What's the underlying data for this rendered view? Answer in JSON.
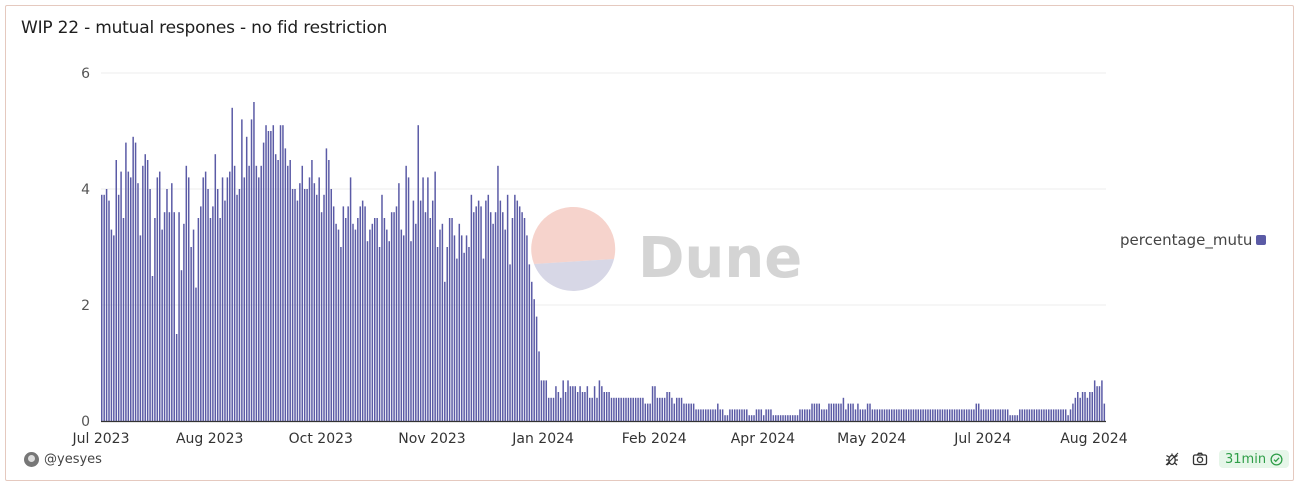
{
  "card": {
    "title": "WIP 22 - mutual respones - no fid restriction"
  },
  "watermark": {
    "text": "Dune"
  },
  "legend": {
    "label": "percentage_mutual",
    "color": "#5b5ba6"
  },
  "footer": {
    "author": "@yesyes",
    "refresh_badge": "31min",
    "icons": [
      "bug-icon",
      "camera-icon",
      "check-circle-icon"
    ]
  },
  "chart_data": {
    "type": "bar",
    "title": "WIP 22 - mutual respones - no fid restriction",
    "xlabel": "",
    "ylabel": "",
    "ylim": [
      0,
      6
    ],
    "yticks": [
      0,
      2,
      4,
      6
    ],
    "grid": true,
    "legend_position": "right",
    "bar_color": "#5b5ba6",
    "x_start": "2023-07-01",
    "x_tick_labels": [
      "Jul 2023",
      "Aug 2023",
      "Oct 2023",
      "Nov 2023",
      "Jan 2024",
      "Feb 2024",
      "Apr 2024",
      "May 2024",
      "Jul 2024",
      "Aug 2024"
    ],
    "x_tick_dates": [
      "2023-07-01",
      "2023-08-15",
      "2023-09-30",
      "2023-11-15",
      "2023-12-31",
      "2024-02-15",
      "2024-03-31",
      "2024-05-15",
      "2024-06-30",
      "2024-08-15"
    ],
    "series": [
      {
        "name": "percentage_mutual",
        "values": [
          3.9,
          3.9,
          4.0,
          3.8,
          3.3,
          3.2,
          4.5,
          3.9,
          4.3,
          3.5,
          4.8,
          4.3,
          4.2,
          4.9,
          4.8,
          4.1,
          3.2,
          4.4,
          4.6,
          4.5,
          4.0,
          2.5,
          3.5,
          4.2,
          4.3,
          3.3,
          3.6,
          4.0,
          3.6,
          4.1,
          3.6,
          1.5,
          3.6,
          2.6,
          3.4,
          4.4,
          4.2,
          3.0,
          3.3,
          2.3,
          3.5,
          3.7,
          4.2,
          4.3,
          4.0,
          3.5,
          3.7,
          4.6,
          4.0,
          3.5,
          4.2,
          3.8,
          4.2,
          4.3,
          5.4,
          4.4,
          3.9,
          4.0,
          5.2,
          4.2,
          4.9,
          4.4,
          5.2,
          5.5,
          4.4,
          4.2,
          4.4,
          4.8,
          5.1,
          5.0,
          5.0,
          5.1,
          4.6,
          4.5,
          5.1,
          5.1,
          4.7,
          4.4,
          4.5,
          4.0,
          4.0,
          3.8,
          4.1,
          4.4,
          4.0,
          4.0,
          4.2,
          4.5,
          4.1,
          3.9,
          4.2,
          3.6,
          3.9,
          4.7,
          4.5,
          4.0,
          3.7,
          3.4,
          3.3,
          3.0,
          3.7,
          3.5,
          3.7,
          4.2,
          3.4,
          3.3,
          3.5,
          3.7,
          3.8,
          3.7,
          3.1,
          3.3,
          3.4,
          3.5,
          3.5,
          3.0,
          3.9,
          3.5,
          3.3,
          3.1,
          3.6,
          3.6,
          3.7,
          4.1,
          3.3,
          3.2,
          4.4,
          4.2,
          3.1,
          3.8,
          3.4,
          5.1,
          3.8,
          4.2,
          3.6,
          4.2,
          3.5,
          3.8,
          4.3,
          3.0,
          3.3,
          3.4,
          2.4,
          3.0,
          3.5,
          3.5,
          3.2,
          2.8,
          3.4,
          3.2,
          2.9,
          3.2,
          3.0,
          3.9,
          3.6,
          3.7,
          3.8,
          3.7,
          2.8,
          3.8,
          3.9,
          3.6,
          3.4,
          3.6,
          4.4,
          3.8,
          3.6,
          3.3,
          3.9,
          2.7,
          3.5,
          3.9,
          3.8,
          3.7,
          3.6,
          3.5,
          3.2,
          2.7,
          2.4,
          2.1,
          1.8,
          1.2,
          0.7,
          0.7,
          0.7,
          0.4,
          0.4,
          0.4,
          0.6,
          0.5,
          0.4,
          0.7,
          0.5,
          0.7,
          0.6,
          0.6,
          0.6,
          0.5,
          0.6,
          0.5,
          0.5,
          0.6,
          0.4,
          0.4,
          0.6,
          0.4,
          0.7,
          0.6,
          0.5,
          0.5,
          0.5,
          0.4,
          0.4,
          0.4,
          0.4,
          0.4,
          0.4,
          0.4,
          0.4,
          0.4,
          0.4,
          0.4,
          0.4,
          0.4,
          0.4,
          0.3,
          0.3,
          0.3,
          0.6,
          0.6,
          0.4,
          0.4,
          0.4,
          0.4,
          0.5,
          0.5,
          0.4,
          0.3,
          0.4,
          0.4,
          0.4,
          0.3,
          0.3,
          0.3,
          0.3,
          0.3,
          0.2,
          0.2,
          0.2,
          0.2,
          0.2,
          0.2,
          0.2,
          0.2,
          0.2,
          0.3,
          0.2,
          0.2,
          0.1,
          0.1,
          0.2,
          0.2,
          0.2,
          0.2,
          0.2,
          0.2,
          0.2,
          0.2,
          0.1,
          0.1,
          0.1,
          0.2,
          0.2,
          0.2,
          0.1,
          0.2,
          0.2,
          0.2,
          0.1,
          0.1,
          0.1,
          0.1,
          0.1,
          0.1,
          0.1,
          0.1,
          0.1,
          0.1,
          0.1,
          0.2,
          0.2,
          0.2,
          0.2,
          0.2,
          0.3,
          0.3,
          0.3,
          0.3,
          0.2,
          0.2,
          0.2,
          0.3,
          0.3,
          0.3,
          0.3,
          0.3,
          0.3,
          0.4,
          0.2,
          0.3,
          0.3,
          0.3,
          0.2,
          0.3,
          0.2,
          0.2,
          0.2,
          0.3,
          0.3,
          0.2,
          0.2,
          0.2,
          0.2,
          0.2,
          0.2,
          0.2,
          0.2,
          0.2,
          0.2,
          0.2,
          0.2,
          0.2,
          0.2,
          0.2,
          0.2,
          0.2,
          0.2,
          0.2,
          0.2,
          0.2,
          0.2,
          0.2,
          0.2,
          0.2,
          0.2,
          0.2,
          0.2,
          0.2,
          0.2,
          0.2,
          0.2,
          0.2,
          0.2,
          0.2,
          0.2,
          0.2,
          0.2,
          0.2,
          0.2,
          0.2,
          0.2,
          0.2,
          0.3,
          0.3,
          0.2,
          0.2,
          0.2,
          0.2,
          0.2,
          0.2,
          0.2,
          0.2,
          0.2,
          0.2,
          0.2,
          0.2,
          0.1,
          0.1,
          0.1,
          0.1,
          0.2,
          0.2,
          0.2,
          0.2,
          0.2,
          0.2,
          0.2,
          0.2,
          0.2,
          0.2,
          0.2,
          0.2,
          0.2,
          0.2,
          0.2,
          0.2,
          0.2,
          0.2,
          0.2,
          0.2,
          0.1,
          0.2,
          0.3,
          0.4,
          0.5,
          0.4,
          0.5,
          0.5,
          0.4,
          0.5,
          0.5,
          0.7,
          0.6,
          0.6,
          0.7,
          0.3
        ]
      }
    ]
  }
}
